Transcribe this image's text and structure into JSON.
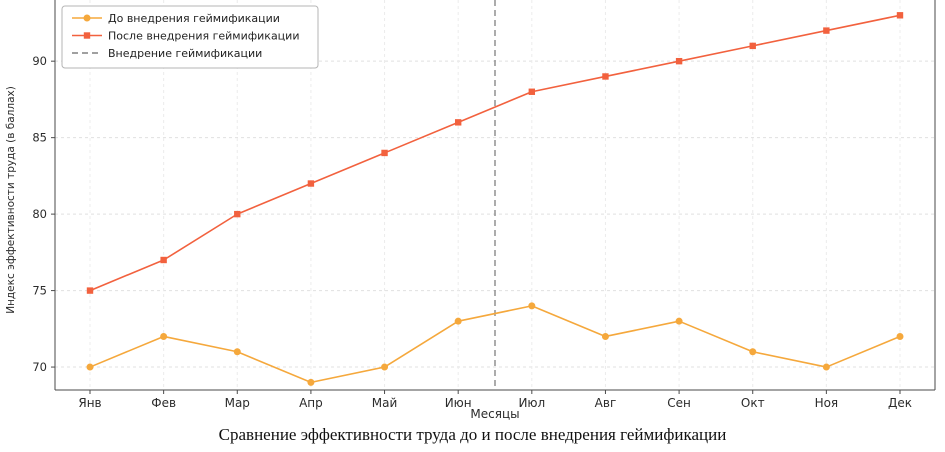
{
  "chart_data": {
    "type": "line",
    "categories": [
      "Янв",
      "Фев",
      "Мар",
      "Апр",
      "Май",
      "Июн",
      "Июл",
      "Авг",
      "Сен",
      "Окт",
      "Ноя",
      "Дек"
    ],
    "series": [
      {
        "name": "До внедрения геймификации",
        "values": [
          70,
          72,
          71,
          69,
          70,
          73,
          74,
          72,
          73,
          71,
          70,
          72
        ],
        "color": "#f5a83c",
        "marker": "circle"
      },
      {
        "name": "После внедрения геймификации",
        "values": [
          75,
          77,
          80,
          82,
          84,
          86,
          88,
          89,
          90,
          91,
          92,
          93
        ],
        "color": "#f2613e",
        "marker": "square"
      }
    ],
    "event_line": {
      "label": "Внедрение геймификации",
      "x_index": 5.5,
      "color": "#808080",
      "style": "dashed"
    },
    "xlabel": "Месяцы",
    "ylabel": "Индекс эффективности труда (в баллах)",
    "yticks": [
      70,
      75,
      80,
      85,
      90
    ],
    "ylim": [
      68.5,
      94
    ],
    "grid": true,
    "legend_position": "upper left",
    "caption": "Сравнение эффективности труда до и после внедрения геймификации",
    "colors": {
      "grid": "#e0e0e0",
      "spine": "#4a4a4a",
      "tick_label": "#2b2b2b",
      "legend_border": "#b5b5b5"
    }
  }
}
